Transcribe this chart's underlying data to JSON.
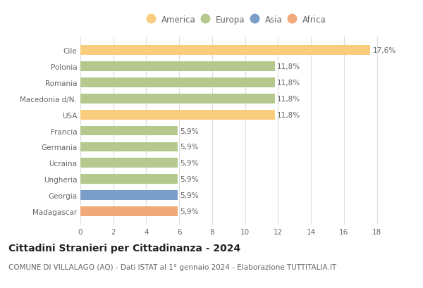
{
  "countries": [
    "Cile",
    "Polonia",
    "Romania",
    "Macedonia d/N.",
    "USA",
    "Francia",
    "Germania",
    "Ucraina",
    "Ungheria",
    "Georgia",
    "Madagascar"
  ],
  "values": [
    17.6,
    11.8,
    11.8,
    11.8,
    11.8,
    5.9,
    5.9,
    5.9,
    5.9,
    5.9,
    5.9
  ],
  "labels": [
    "17,6%",
    "11,8%",
    "11,8%",
    "11,8%",
    "11,8%",
    "5,9%",
    "5,9%",
    "5,9%",
    "5,9%",
    "5,9%",
    "5,9%"
  ],
  "colors": [
    "#FACC7D",
    "#B5C98E",
    "#B5C98E",
    "#B5C98E",
    "#FACC7D",
    "#B5C98E",
    "#B5C98E",
    "#B5C98E",
    "#B5C98E",
    "#7B9EC9",
    "#F2A97A"
  ],
  "continent_colors": {
    "America": "#FACC7D",
    "Europa": "#B5C98E",
    "Asia": "#7B9EC9",
    "Africa": "#F2A97A"
  },
  "legend_order": [
    "America",
    "Europa",
    "Asia",
    "Africa"
  ],
  "xlim": [
    0,
    19
  ],
  "xticks": [
    0,
    2,
    4,
    6,
    8,
    10,
    12,
    14,
    16,
    18
  ],
  "title": "Cittadini Stranieri per Cittadinanza - 2024",
  "subtitle": "COMUNE DI VILLALAGO (AQ) - Dati ISTAT al 1° gennaio 2024 - Elaborazione TUTTITALIA.IT",
  "title_fontsize": 10,
  "subtitle_fontsize": 7.5,
  "label_fontsize": 7.5,
  "tick_fontsize": 7.5,
  "legend_fontsize": 8.5,
  "bg_color": "#FFFFFF",
  "grid_color": "#DDDDDD",
  "bar_height": 0.6,
  "text_color": "#666666",
  "title_color": "#222222"
}
